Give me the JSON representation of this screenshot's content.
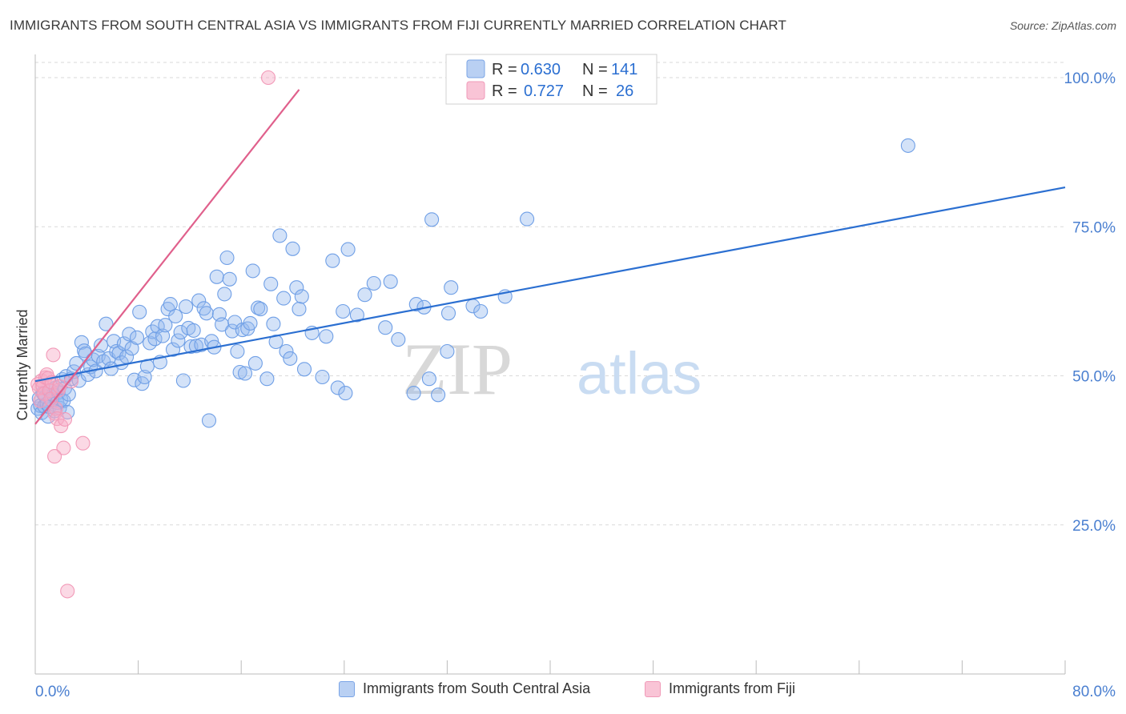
{
  "header": {
    "title": "IMMIGRANTS FROM SOUTH CENTRAL ASIA VS IMMIGRANTS FROM FIJI CURRENTLY MARRIED CORRELATION CHART",
    "source": "Source: ZipAtlas.com"
  },
  "watermark": {
    "part1": "ZIP",
    "part2": "atlas"
  },
  "colors": {
    "blue": "#6f9fe6",
    "blue_line": "#2b6fd1",
    "pink": "#f29ab8",
    "pink_line": "#e0608c",
    "axis_text": "#4a7fd0",
    "grid": "#d9d9d9"
  },
  "legend": {
    "rows": [
      {
        "r_label": "R =",
        "r_value": "0.630",
        "n_label": "N =",
        "n_value": "141",
        "color": "blue"
      },
      {
        "r_label": "R =",
        "r_value": "0.727",
        "n_label": "N =",
        "n_value": "26",
        "color": "pink"
      }
    ]
  },
  "bottom_legend": [
    {
      "label": "Immigrants from South Central Asia",
      "color": "blue"
    },
    {
      "label": "Immigrants from Fiji",
      "color": "pink"
    }
  ],
  "chart_data": {
    "type": "scatter",
    "title": "IMMIGRANTS FROM SOUTH CENTRAL ASIA VS IMMIGRANTS FROM FIJI CURRENTLY MARRIED CORRELATION CHART",
    "xlabel": "",
    "ylabel": "Currently Married",
    "xlim": [
      0,
      80
    ],
    "ylim": [
      0,
      105
    ],
    "x_ticks_labeled": [
      "0.0%",
      "80.0%"
    ],
    "y_ticks": [
      25,
      50,
      75,
      100
    ],
    "y_tick_labels": [
      "25.0%",
      "50.0%",
      "75.0%",
      "100.0%"
    ],
    "grid": "horizontal dashed",
    "legend_position": "top-center",
    "series": [
      {
        "name": "Immigrants from South Central Asia",
        "color": "blue",
        "R": 0.63,
        "N": 141,
        "trend": {
          "x": [
            0,
            80
          ],
          "y": [
            49.1,
            81.6
          ]
        },
        "points": [
          [
            0.2,
            44.5
          ],
          [
            0.3,
            46.2
          ],
          [
            0.4,
            45.0
          ],
          [
            0.5,
            43.8
          ],
          [
            0.6,
            47.1
          ],
          [
            0.7,
            44.9
          ],
          [
            0.8,
            46.5
          ],
          [
            0.9,
            45.3
          ],
          [
            1.0,
            43.2
          ],
          [
            1.1,
            44.8
          ],
          [
            1.2,
            47.5
          ],
          [
            1.3,
            45.9
          ],
          [
            1.4,
            46.8
          ],
          [
            1.5,
            44.1
          ],
          [
            1.6,
            48.0
          ],
          [
            1.7,
            45.5
          ],
          [
            1.8,
            47.2
          ],
          [
            1.9,
            44.6
          ],
          [
            2.0,
            46.0
          ],
          [
            2.1,
            49.4
          ],
          [
            2.2,
            45.8
          ],
          [
            2.3,
            47.9
          ],
          [
            2.4,
            49.9
          ],
          [
            2.5,
            43.9
          ],
          [
            2.6,
            46.9
          ],
          [
            2.8,
            49.5
          ],
          [
            3.0,
            50.7
          ],
          [
            3.2,
            52.1
          ],
          [
            3.4,
            49.2
          ],
          [
            3.6,
            55.6
          ],
          [
            3.8,
            54.2
          ],
          [
            3.9,
            53.7
          ],
          [
            4.1,
            50.2
          ],
          [
            4.3,
            51.5
          ],
          [
            4.5,
            52.7
          ],
          [
            4.7,
            50.8
          ],
          [
            4.9,
            53.3
          ],
          [
            5.1,
            55.1
          ],
          [
            5.3,
            52.4
          ],
          [
            5.5,
            58.7
          ],
          [
            5.7,
            52.9
          ],
          [
            5.9,
            51.2
          ],
          [
            6.1,
            55.8
          ],
          [
            6.3,
            54.1
          ],
          [
            6.5,
            53.8
          ],
          [
            6.7,
            52.2
          ],
          [
            6.9,
            55.4
          ],
          [
            7.1,
            53.2
          ],
          [
            7.3,
            57.0
          ],
          [
            7.5,
            54.6
          ],
          [
            7.7,
            49.3
          ],
          [
            7.9,
            56.4
          ],
          [
            8.1,
            60.7
          ],
          [
            8.3,
            48.7
          ],
          [
            8.5,
            49.8
          ],
          [
            8.7,
            51.6
          ],
          [
            8.9,
            55.5
          ],
          [
            9.1,
            57.4
          ],
          [
            9.3,
            56.2
          ],
          [
            9.5,
            58.3
          ],
          [
            9.7,
            52.3
          ],
          [
            9.9,
            56.7
          ],
          [
            10.1,
            58.5
          ],
          [
            10.3,
            61.2
          ],
          [
            10.5,
            62.0
          ],
          [
            10.7,
            54.4
          ],
          [
            10.9,
            60.0
          ],
          [
            11.1,
            55.9
          ],
          [
            11.3,
            57.3
          ],
          [
            11.5,
            49.2
          ],
          [
            11.7,
            61.6
          ],
          [
            11.9,
            58.0
          ],
          [
            12.1,
            54.9
          ],
          [
            12.3,
            57.6
          ],
          [
            12.5,
            55.0
          ],
          [
            12.7,
            62.6
          ],
          [
            12.9,
            55.2
          ],
          [
            13.1,
            61.3
          ],
          [
            13.3,
            60.5
          ],
          [
            13.5,
            42.5
          ],
          [
            13.7,
            55.8
          ],
          [
            13.9,
            54.8
          ],
          [
            14.1,
            66.6
          ],
          [
            14.3,
            60.3
          ],
          [
            14.5,
            58.6
          ],
          [
            14.7,
            63.7
          ],
          [
            14.9,
            69.8
          ],
          [
            15.1,
            66.2
          ],
          [
            15.3,
            57.5
          ],
          [
            15.5,
            59.0
          ],
          [
            15.7,
            54.1
          ],
          [
            15.9,
            50.6
          ],
          [
            16.1,
            57.7
          ],
          [
            16.3,
            50.4
          ],
          [
            16.5,
            57.9
          ],
          [
            16.7,
            58.8
          ],
          [
            16.9,
            67.6
          ],
          [
            17.1,
            52.1
          ],
          [
            17.3,
            61.4
          ],
          [
            17.5,
            61.2
          ],
          [
            18.0,
            49.5
          ],
          [
            18.3,
            65.4
          ],
          [
            18.5,
            58.7
          ],
          [
            18.7,
            55.7
          ],
          [
            19.0,
            73.5
          ],
          [
            19.3,
            63.0
          ],
          [
            19.5,
            54.1
          ],
          [
            19.8,
            52.9
          ],
          [
            20.0,
            71.3
          ],
          [
            20.3,
            64.8
          ],
          [
            20.5,
            61.2
          ],
          [
            20.7,
            63.3
          ],
          [
            20.9,
            51.1
          ],
          [
            21.5,
            57.2
          ],
          [
            22.3,
            49.8
          ],
          [
            22.6,
            56.6
          ],
          [
            23.1,
            69.3
          ],
          [
            23.5,
            48.0
          ],
          [
            23.9,
            60.8
          ],
          [
            24.1,
            47.1
          ],
          [
            24.3,
            71.2
          ],
          [
            25.0,
            60.2
          ],
          [
            25.6,
            63.6
          ],
          [
            26.3,
            65.5
          ],
          [
            27.2,
            58.1
          ],
          [
            27.6,
            65.8
          ],
          [
            28.2,
            56.1
          ],
          [
            29.4,
            47.1
          ],
          [
            29.6,
            62.0
          ],
          [
            30.2,
            61.5
          ],
          [
            30.6,
            49.5
          ],
          [
            30.8,
            76.2
          ],
          [
            31.3,
            46.8
          ],
          [
            32.0,
            54.1
          ],
          [
            32.1,
            60.5
          ],
          [
            32.3,
            64.8
          ],
          [
            34.0,
            61.7
          ],
          [
            34.6,
            60.8
          ],
          [
            36.5,
            63.3
          ],
          [
            38.2,
            76.3
          ],
          [
            67.8,
            88.6
          ]
        ]
      },
      {
        "name": "Immigrants from Fiji",
        "color": "pink",
        "R": 0.727,
        "N": 26,
        "trend": {
          "x": [
            0,
            20.5
          ],
          "y": [
            41.9,
            98.0
          ]
        },
        "points": [
          [
            0.2,
            48.6
          ],
          [
            0.3,
            47.9
          ],
          [
            0.4,
            45.8
          ],
          [
            0.5,
            49.2
          ],
          [
            0.6,
            48.2
          ],
          [
            0.7,
            47.0
          ],
          [
            0.8,
            49.7
          ],
          [
            0.9,
            50.2
          ],
          [
            1.0,
            49.6
          ],
          [
            1.1,
            47.5
          ],
          [
            1.2,
            46.1
          ],
          [
            1.3,
            48.9
          ],
          [
            1.4,
            53.5
          ],
          [
            1.5,
            43.7
          ],
          [
            1.6,
            44.5
          ],
          [
            1.7,
            42.8
          ],
          [
            1.8,
            47.6
          ],
          [
            1.9,
            48.2
          ],
          [
            2.0,
            41.6
          ],
          [
            2.2,
            37.9
          ],
          [
            1.5,
            36.5
          ],
          [
            2.3,
            42.7
          ],
          [
            3.7,
            38.7
          ],
          [
            2.5,
            13.9
          ],
          [
            18.1,
            100.0
          ],
          [
            2.8,
            49.1
          ]
        ]
      }
    ]
  }
}
